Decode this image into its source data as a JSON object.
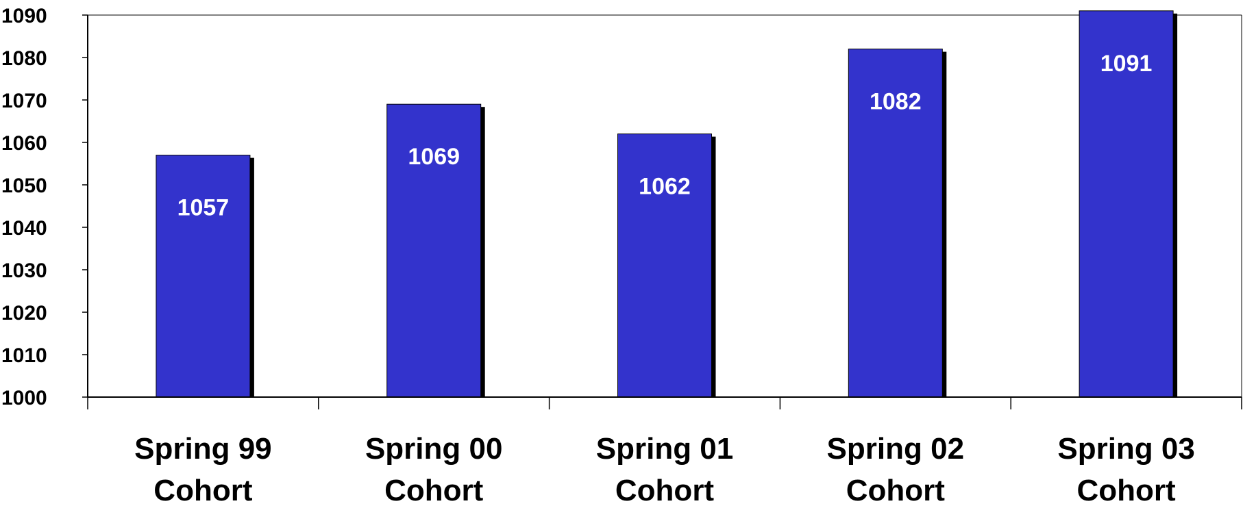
{
  "chart_data": {
    "type": "bar",
    "title": "",
    "xlabel": "",
    "ylabel": "",
    "categories": [
      [
        "Spring 99",
        "Cohort"
      ],
      [
        "Spring 00",
        "Cohort"
      ],
      [
        "Spring 01",
        "Cohort"
      ],
      [
        "Spring 02",
        "Cohort"
      ],
      [
        "Spring 03",
        "Cohort"
      ]
    ],
    "values": [
      1057,
      1069,
      1062,
      1082,
      1091
    ],
    "data_labels": [
      "1057",
      "1069",
      "1062",
      "1082",
      "1091"
    ],
    "ylim": [
      1000,
      1090
    ],
    "y_ticks": [
      "1000",
      "1010",
      "1020",
      "1030",
      "1040",
      "1050",
      "1060",
      "1070",
      "1080",
      "1090"
    ],
    "grid": false,
    "legend": "none",
    "colors": {
      "bar": "#3333CC",
      "bar_shadow": "#000000",
      "data_label": "#FFFFFF",
      "axis": "#000000",
      "text": "#000000"
    }
  }
}
